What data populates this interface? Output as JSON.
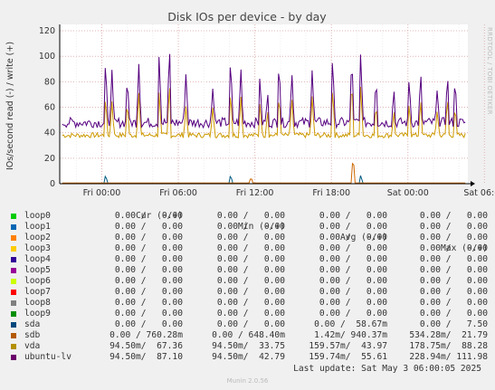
{
  "chart_data": {
    "type": "line",
    "title": "Disk IOs per device - by day",
    "ylabel": "IOs/second read (-) / write (+)",
    "ylim": [
      0,
      125
    ],
    "yticks": [
      0,
      20,
      40,
      60,
      80,
      100,
      120
    ],
    "xticks": [
      "Fri 00:00",
      "Fri 06:00",
      "Fri 12:00",
      "Fri 18:00",
      "Sat 00:00",
      "Sat 06:00"
    ],
    "grid": true,
    "side_label": "RRDTOOL / TOBI OETIKER",
    "series": [
      {
        "name": "ubuntu-lv",
        "color": "#55007f",
        "baseline": 48,
        "noise": 4,
        "spikes": [
          [
            3.6,
            100
          ],
          [
            4.1,
            90
          ],
          [
            5.3,
            85
          ],
          [
            6.2,
            95
          ],
          [
            7.8,
            105
          ],
          [
            8.6,
            112
          ],
          [
            9.9,
            88
          ],
          [
            12.0,
            75
          ],
          [
            13.4,
            102
          ],
          [
            14.2,
            92
          ],
          [
            15.7,
            86
          ],
          [
            16.3,
            72
          ],
          [
            17.2,
            99
          ],
          [
            18.2,
            88
          ],
          [
            19.8,
            91
          ],
          [
            21.4,
            104
          ],
          [
            22.9,
            103
          ],
          [
            23.6,
            107
          ],
          [
            24.8,
            84
          ],
          [
            26.2,
            75
          ],
          [
            27.4,
            85
          ],
          [
            28.3,
            90
          ],
          [
            29.6,
            75
          ],
          [
            30.4,
            88
          ],
          [
            31.0,
            84
          ]
        ]
      },
      {
        "name": "vda",
        "color": "#cc9900",
        "baseline": 38,
        "noise": 2,
        "spikes": [
          [
            3.6,
            70
          ],
          [
            4.1,
            65
          ],
          [
            5.3,
            66
          ],
          [
            6.2,
            72
          ],
          [
            7.8,
            75
          ],
          [
            8.6,
            82
          ],
          [
            9.9,
            62
          ],
          [
            12.0,
            60
          ],
          [
            13.4,
            75
          ],
          [
            14.2,
            70
          ],
          [
            15.7,
            65
          ],
          [
            16.3,
            58
          ],
          [
            17.2,
            72
          ],
          [
            18.2,
            68
          ],
          [
            19.8,
            70
          ],
          [
            21.4,
            78
          ],
          [
            22.9,
            85
          ],
          [
            23.6,
            80
          ],
          [
            24.8,
            64
          ],
          [
            26.2,
            58
          ],
          [
            27.4,
            65
          ],
          [
            28.3,
            68
          ],
          [
            29.6,
            58
          ],
          [
            30.4,
            70
          ],
          [
            31.0,
            62
          ]
        ]
      },
      {
        "name": "sdb",
        "color": "#cc6600",
        "baseline": 0.6,
        "noise": 0,
        "spikes": [
          [
            23.0,
            22
          ],
          [
            15.0,
            5
          ]
        ]
      },
      {
        "name": "sda",
        "color": "#005a82",
        "baseline": 0,
        "noise": 0,
        "spikes": [
          [
            3.6,
            7
          ],
          [
            13.4,
            7
          ],
          [
            23.6,
            7
          ]
        ]
      }
    ],
    "legend": {
      "headers": [
        "Cur (-/+)",
        "Min (-/+)",
        "Avg (-/+)",
        "Max (-/+)"
      ],
      "rows": [
        {
          "name": "loop0",
          "color": "#00cc00",
          "cur": "0.00 /   0.00",
          "min": "0.00 /   0.00",
          "avg": "0.00 /   0.00",
          "max": "0.00 /   0.00"
        },
        {
          "name": "loop1",
          "color": "#0066b3",
          "cur": "0.00 /   0.00",
          "min": "0.00 /   0.00",
          "avg": "0.00 /   0.00",
          "max": "0.00 /   0.00"
        },
        {
          "name": "loop2",
          "color": "#ff8000",
          "cur": "0.00 /   0.00",
          "min": "0.00 /   0.00",
          "avg": "0.00 /   0.00",
          "max": "0.00 /   0.00"
        },
        {
          "name": "loop3",
          "color": "#ffcc00",
          "cur": "0.00 /   0.00",
          "min": "0.00 /   0.00",
          "avg": "0.00 /   0.00",
          "max": "0.00 /   0.00"
        },
        {
          "name": "loop4",
          "color": "#330099",
          "cur": "0.00 /   0.00",
          "min": "0.00 /   0.00",
          "avg": "0.00 /   0.00",
          "max": "0.00 /   0.00"
        },
        {
          "name": "loop5",
          "color": "#990099",
          "cur": "0.00 /   0.00",
          "min": "0.00 /   0.00",
          "avg": "0.00 /   0.00",
          "max": "0.00 /   0.00"
        },
        {
          "name": "loop6",
          "color": "#ccff00",
          "cur": "0.00 /   0.00",
          "min": "0.00 /   0.00",
          "avg": "0.00 /   0.00",
          "max": "0.00 /   0.00"
        },
        {
          "name": "loop7",
          "color": "#ff0000",
          "cur": "0.00 /   0.00",
          "min": "0.00 /   0.00",
          "avg": "0.00 /   0.00",
          "max": "0.00 /   0.00"
        },
        {
          "name": "loop8",
          "color": "#808080",
          "cur": "0.00 /   0.00",
          "min": "0.00 /   0.00",
          "avg": "0.00 /   0.00",
          "max": "0.00 /   0.00"
        },
        {
          "name": "loop9",
          "color": "#008f00",
          "cur": "0.00 /   0.00",
          "min": "0.00 /   0.00",
          "avg": "0.00 /   0.00",
          "max": "0.00 /   0.00"
        },
        {
          "name": "sda",
          "color": "#00487d",
          "cur": "0.00 /   0.00",
          "min": "0.00 /   0.00",
          "avg": "0.00 /  58.67m",
          "max": "0.00 /   7.50"
        },
        {
          "name": "sdb",
          "color": "#b35a00",
          "cur": "0.00 / 760.28m",
          "min": "0.00 / 648.40m",
          "avg": "1.42m/ 940.37m",
          "max": "534.28m/  21.79"
        },
        {
          "name": "vda",
          "color": "#b38f00",
          "cur": "94.50m/  67.36",
          "min": "94.50m/  33.75",
          "avg": "159.57m/  43.97",
          "max": "178.75m/  88.28"
        },
        {
          "name": "ubuntu-lv",
          "color": "#6b006b",
          "cur": "94.50m/  87.10",
          "min": "94.50m/  42.79",
          "avg": "159.74m/  55.61",
          "max": "228.94m/ 111.98"
        }
      ]
    },
    "last_update": "Last update: Sat May  3 06:00:05 2025",
    "generator": "Munin 2.0.56"
  }
}
